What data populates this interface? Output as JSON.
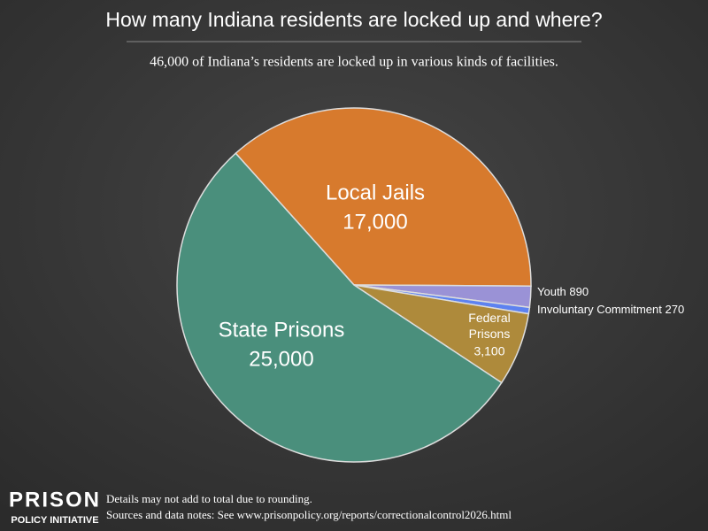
{
  "chart_data": {
    "type": "pie",
    "title": "How many Indiana residents are locked up and where?",
    "subtitle": "46,000 of Indiana’s residents are locked up in various kinds of facilities.",
    "categories": [
      "Local Jails",
      "Youth",
      "Involuntary Commitment",
      "Federal Prisons",
      "State Prisons"
    ],
    "values": [
      17000,
      890,
      270,
      3100,
      25000
    ],
    "value_labels": [
      "17,000",
      "890",
      "270",
      "3,100",
      "25,000"
    ],
    "colors": [
      "#d77a2d",
      "#9a92d6",
      "#5d82f0",
      "#ae8a3b",
      "#4a8f7c"
    ],
    "notes": [
      "Details may not add to total due to rounding.",
      "Sources and data notes: See www.prisonpolicy.org/reports/correctionalcontrol2026.html"
    ],
    "logo": [
      "PRISON",
      "POLICY INITIATIVE"
    ]
  }
}
